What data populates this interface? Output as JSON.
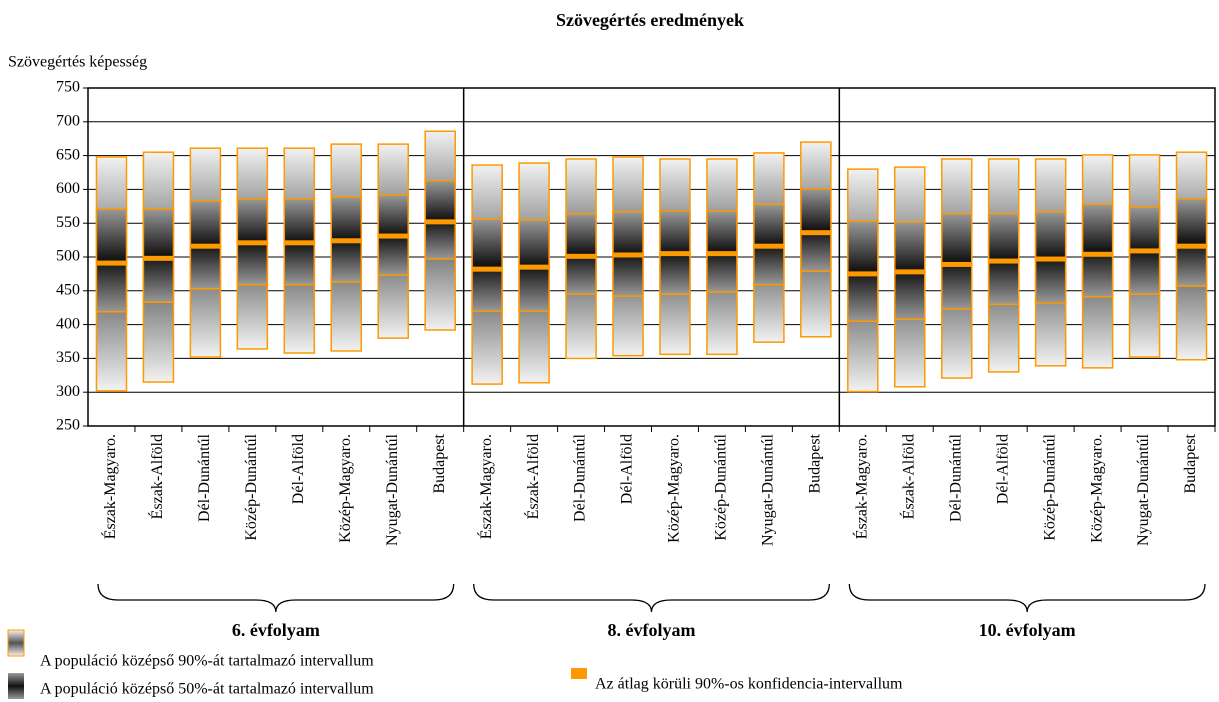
{
  "chart_data": {
    "type": "percentile-box",
    "title": "Szövegértés eredmények",
    "y_label": "Szövegértés képesség",
    "ylim": [
      250,
      750
    ],
    "yticks": [
      250,
      300,
      350,
      400,
      450,
      500,
      550,
      600,
      650,
      700,
      750
    ],
    "grid": true,
    "box_color": "#ff9900",
    "legend": [
      "A populáció középső 90%-át tartalmazó intervallum",
      "A populáció középső 50%-át tartalmazó intervallum",
      "Az átlag körüli 90%-os konfidencia-intervallum"
    ],
    "groups": [
      {
        "name": "6. évfolyam",
        "categories": [
          "Észak-Magyaro.",
          "Észak-Alföld",
          "Dél-Dunántúl",
          "Közép-Dunántúl",
          "Dél-Alföld",
          "Közép-Magyaro.",
          "Nyugat-Dunántúl",
          "Budapest"
        ],
        "p95": [
          648,
          655,
          661,
          661,
          661,
          667,
          667,
          686
        ],
        "p75": [
          571,
          571,
          583,
          586,
          586,
          589,
          592,
          613
        ],
        "mean": [
          491,
          498,
          516,
          521,
          521,
          524,
          531,
          552
        ],
        "p25": [
          419,
          433,
          453,
          459,
          459,
          463,
          473,
          497
        ],
        "p5": [
          302,
          315,
          352,
          364,
          358,
          361,
          380,
          392
        ]
      },
      {
        "name": "8. évfolyam",
        "categories": [
          "Észak-Magyaro.",
          "Észak-Alföld",
          "Dél-Dunántúl",
          "Dél-Alföld",
          "Közép-Magyaro.",
          "Közép-Dunántúl",
          "Nyugat-Dunántúl",
          "Budapest"
        ],
        "p95": [
          636,
          639,
          645,
          648,
          645,
          645,
          654,
          670
        ],
        "p75": [
          556,
          555,
          564,
          567,
          568,
          568,
          578,
          601
        ],
        "mean": [
          482,
          485,
          501,
          503,
          505,
          505,
          516,
          536
        ],
        "p25": [
          420,
          420,
          445,
          442,
          445,
          448,
          459,
          479
        ],
        "p5": [
          312,
          314,
          350,
          354,
          356,
          356,
          374,
          382
        ]
      },
      {
        "name": "10. évfolyam",
        "categories": [
          "Észak-Magyaro.",
          "Észak-Alföld",
          "Dél-Dunántúl",
          "Dél-Alföld",
          "Közép-Dunántúl",
          "Közép-Magyaro.",
          "Nyugat-Dunántúl",
          "Budapest"
        ],
        "p95": [
          630,
          633,
          645,
          645,
          645,
          651,
          651,
          655
        ],
        "p75": [
          553,
          552,
          564,
          564,
          567,
          578,
          574,
          586
        ],
        "mean": [
          475,
          478,
          489,
          494,
          497,
          504,
          509,
          516
        ],
        "p25": [
          405,
          408,
          423,
          430,
          432,
          441,
          445,
          457
        ],
        "p5": [
          301,
          308,
          321,
          330,
          339,
          336,
          352,
          348
        ]
      }
    ]
  }
}
